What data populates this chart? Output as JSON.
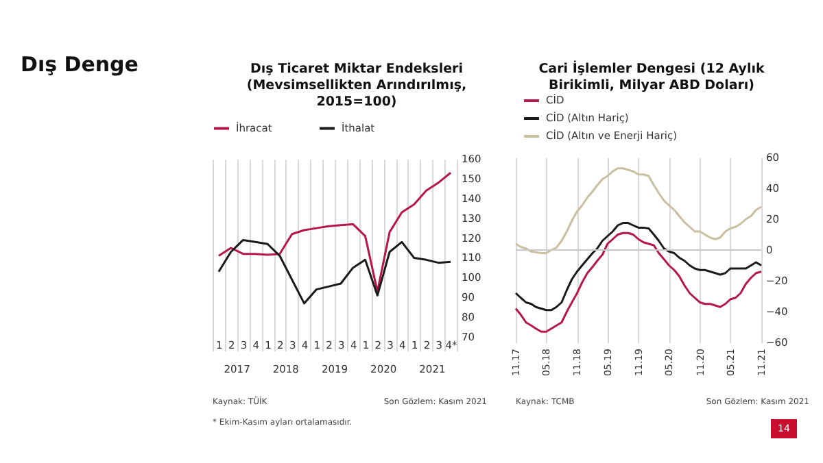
{
  "chart_data": [
    {
      "type": "line",
      "title": "Dış Ticaret Miktar Endeksleri (Mevsimsellikten Arındırılmış, 2015=100)",
      "categories": [
        "1",
        "2",
        "3",
        "4",
        "1",
        "2",
        "3",
        "4",
        "1",
        "2",
        "3",
        "4",
        "1",
        "2",
        "3",
        "4",
        "1",
        "2",
        "3",
        "4*"
      ],
      "series": [
        {
          "name": "İhracat",
          "color": "#b5174a",
          "values": [
            111,
            115,
            112,
            112,
            111.5,
            112,
            122,
            124,
            125,
            126,
            126.5,
            127,
            121,
            93,
            123,
            133,
            137,
            144,
            148,
            153
          ]
        },
        {
          "name": "İthalat",
          "color": "#1a1a1a",
          "values": [
            103,
            113,
            119,
            118,
            117,
            111,
            99,
            87,
            94,
            95.5,
            97,
            105,
            109,
            91,
            113,
            118,
            110,
            109,
            107.5,
            108
          ]
        }
      ],
      "ylim": [
        70,
        160
      ],
      "yticks": [
        70,
        80,
        90,
        100,
        110,
        120,
        130,
        140,
        150,
        160
      ],
      "grid": "x",
      "legend": "top",
      "annotations": [
        "2017",
        "2018",
        "2019",
        "2020",
        "2021",
        "Kaynak: TÜİK",
        "Son Gözlem: Kasım 2021",
        "* Ekim-Kasım ayları ortalamasıdır.",
        "Dış Denge",
        "14"
      ]
    },
    {
      "type": "line",
      "title": "Cari İşlemler Dengesi (12 Aylık Birikimli, Milyar ABD Doları)",
      "x": [
        "2017-11",
        "2017-12",
        "2018-01",
        "2018-02",
        "2018-03",
        "2018-04",
        "2018-05",
        "2018-06",
        "2018-07",
        "2018-08",
        "2018-09",
        "2018-10",
        "2018-11",
        "2018-12",
        "2019-01",
        "2019-02",
        "2019-03",
        "2019-04",
        "2019-05",
        "2019-06",
        "2019-07",
        "2019-08",
        "2019-09",
        "2019-10",
        "2019-11",
        "2019-12",
        "2020-01",
        "2020-02",
        "2020-03",
        "2020-04",
        "2020-05",
        "2020-06",
        "2020-07",
        "2020-08",
        "2020-09",
        "2020-10",
        "2020-11",
        "2020-12",
        "2021-01",
        "2021-02",
        "2021-03",
        "2021-04",
        "2021-05",
        "2021-06",
        "2021-07",
        "2021-08",
        "2021-09",
        "2021-10",
        "2021-11"
      ],
      "series": [
        {
          "name": "CİD",
          "color": "#b5174a",
          "values": [
            -38,
            -42,
            -47,
            -49,
            -51,
            -53,
            -53,
            -51,
            -49,
            -47,
            -40,
            -34,
            -28,
            -21,
            -15,
            -11,
            -7,
            -3,
            4,
            7,
            10,
            11,
            11,
            10,
            7,
            5,
            4,
            3,
            -2,
            -6,
            -10,
            -13,
            -17,
            -23,
            -28,
            -31,
            -34,
            -35,
            -35,
            -36,
            -37,
            -35,
            -32,
            -31,
            -28,
            -22,
            -18,
            -15,
            -14
          ]
        },
        {
          "name": "CİD (Altın Hariç)",
          "color": "#1a1a1a",
          "values": [
            -28,
            -31,
            -34,
            -35,
            -37,
            -38,
            -39,
            -39,
            -37,
            -34,
            -26,
            -19,
            -14,
            -10,
            -6,
            -2,
            1,
            6,
            9,
            12,
            16,
            17.5,
            17.5,
            16,
            14.5,
            14.5,
            14,
            10,
            6,
            1,
            -1,
            -2,
            -5,
            -7,
            -10,
            -12,
            -13,
            -13,
            -14,
            -15,
            -16,
            -15,
            -12,
            -12,
            -12,
            -12,
            -10,
            -8,
            -10
          ]
        },
        {
          "name": "CİD (Altın ve Enerji Hariç)",
          "color": "#c8bf9f",
          "values": [
            4,
            2,
            1,
            -1,
            -1.5,
            -2,
            -2,
            0,
            1.5,
            6,
            12,
            19,
            25,
            29,
            34,
            38,
            42,
            46,
            48,
            51,
            53,
            53,
            52,
            51,
            49,
            49,
            48,
            42,
            37,
            32,
            29,
            26,
            22,
            18,
            15,
            12,
            12,
            10,
            8,
            7,
            8,
            12,
            14,
            15,
            17,
            20,
            22,
            26,
            28
          ]
        }
      ],
      "xlim": [
        "2017-11",
        "2021-11"
      ],
      "xticks": [
        {
          "value": "2017-11",
          "label": "11.17"
        },
        {
          "value": "2018-05",
          "label": "05.18"
        },
        {
          "value": "2018-11",
          "label": "11.18"
        },
        {
          "value": "2019-05",
          "label": "05.19"
        },
        {
          "value": "2019-11",
          "label": "11.19"
        },
        {
          "value": "2020-05",
          "label": "05.20"
        },
        {
          "value": "2020-11",
          "label": "11.20"
        },
        {
          "value": "2021-05",
          "label": "05.21"
        },
        {
          "value": "2021-11",
          "label": "11.21"
        }
      ],
      "ylim": [
        -60,
        60
      ],
      "yticks": [
        -60,
        -40,
        -20,
        0,
        20,
        40,
        60
      ],
      "grid": "x",
      "legend": "top left",
      "ref_lines": [
        {
          "axis": "y",
          "value": 0,
          "color": "#c8c8c8"
        }
      ],
      "annotations": [
        "Kaynak: TCMB",
        "Son Gözlem: Kasım 2021"
      ]
    }
  ]
}
